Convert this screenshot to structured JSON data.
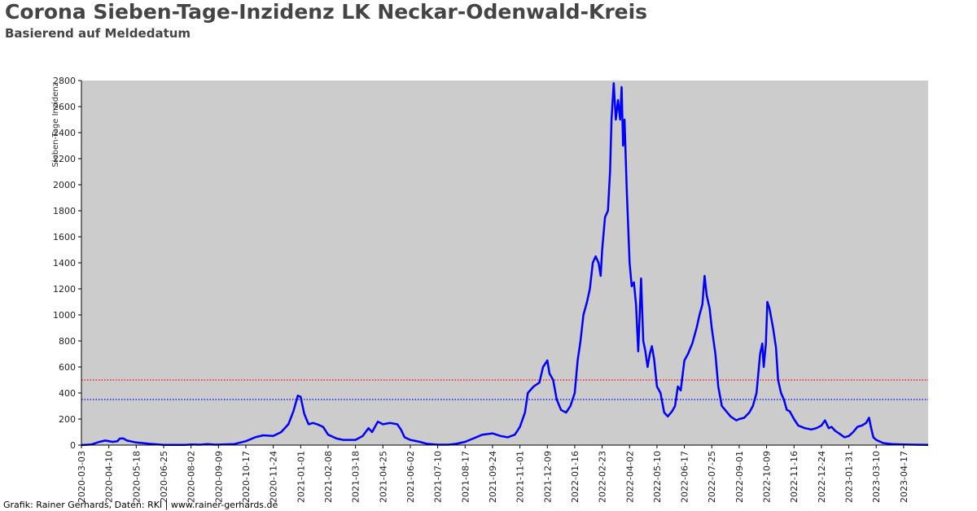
{
  "header": {
    "title": "Corona Sieben-Tage-Inzidenz LK Neckar-Odenwald-Kreis",
    "subtitle": "Basierend auf Meldedatum"
  },
  "footer": {
    "credit": "Grafik: Rainer Gerhards, Daten: RKI | www.rainer-gerhards.de"
  },
  "chart_data": {
    "type": "line",
    "title": "Corona Sieben-Tage-Inzidenz LK Neckar-Odenwald-Kreis",
    "subtitle": "Basierend auf Meldedatum",
    "xlabel": "",
    "ylabel": "Sieben-Tage Inzidenz",
    "ylim": [
      0,
      2800
    ],
    "xlim": [
      "2020-03-03",
      "2023-05-21"
    ],
    "yticks": [
      0,
      200,
      400,
      600,
      800,
      1000,
      1200,
      1400,
      1600,
      1800,
      2000,
      2200,
      2400,
      2600,
      2800
    ],
    "xticks": [
      "2020-03-03",
      "2020-04-10",
      "2020-05-18",
      "2020-06-25",
      "2020-08-02",
      "2020-09-09",
      "2020-10-17",
      "2020-11-24",
      "2021-01-01",
      "2021-02-08",
      "2021-03-18",
      "2021-04-25",
      "2021-06-02",
      "2021-07-10",
      "2021-08-17",
      "2021-09-24",
      "2021-11-01",
      "2021-12-09",
      "2022-01-16",
      "2022-02-23",
      "2022-04-02",
      "2022-05-10",
      "2022-06-17",
      "2022-07-25",
      "2022-09-01",
      "2022-10-09",
      "2022-11-16",
      "2022-12-24",
      "2023-01-31",
      "2023-03-10",
      "2023-04-17"
    ],
    "grid": false,
    "background": "#cccccc",
    "reference_lines": [
      {
        "y": 500,
        "color": "#ff0000",
        "style": "dotted"
      },
      {
        "y": 350,
        "color": "#0000ff",
        "style": "dotted"
      }
    ],
    "series": [
      {
        "color": "#0000ff",
        "points": [
          [
            "2020-03-03",
            0
          ],
          [
            "2020-03-17",
            5
          ],
          [
            "2020-03-28",
            25
          ],
          [
            "2020-04-05",
            35
          ],
          [
            "2020-04-15",
            25
          ],
          [
            "2020-04-22",
            30
          ],
          [
            "2020-04-25",
            50
          ],
          [
            "2020-04-30",
            52
          ],
          [
            "2020-05-05",
            35
          ],
          [
            "2020-05-18",
            20
          ],
          [
            "2020-06-05",
            10
          ],
          [
            "2020-06-25",
            2
          ],
          [
            "2020-07-25",
            2
          ],
          [
            "2020-08-02",
            5
          ],
          [
            "2020-08-15",
            3
          ],
          [
            "2020-08-25",
            8
          ],
          [
            "2020-09-05",
            3
          ],
          [
            "2020-10-01",
            8
          ],
          [
            "2020-10-17",
            30
          ],
          [
            "2020-10-30",
            60
          ],
          [
            "2020-11-10",
            75
          ],
          [
            "2020-11-24",
            70
          ],
          [
            "2020-12-05",
            100
          ],
          [
            "2020-12-15",
            160
          ],
          [
            "2020-12-22",
            260
          ],
          [
            "2020-12-28",
            380
          ],
          [
            "2021-01-01",
            370
          ],
          [
            "2021-01-06",
            240
          ],
          [
            "2021-01-12",
            160
          ],
          [
            "2021-01-18",
            170
          ],
          [
            "2021-01-24",
            160
          ],
          [
            "2021-02-01",
            140
          ],
          [
            "2021-02-08",
            80
          ],
          [
            "2021-02-20",
            50
          ],
          [
            "2021-03-01",
            40
          ],
          [
            "2021-03-18",
            40
          ],
          [
            "2021-03-28",
            70
          ],
          [
            "2021-04-05",
            130
          ],
          [
            "2021-04-10",
            100
          ],
          [
            "2021-04-18",
            180
          ],
          [
            "2021-04-25",
            160
          ],
          [
            "2021-05-05",
            170
          ],
          [
            "2021-05-15",
            160
          ],
          [
            "2021-05-20",
            120
          ],
          [
            "2021-05-25",
            60
          ],
          [
            "2021-06-02",
            40
          ],
          [
            "2021-06-15",
            25
          ],
          [
            "2021-06-25",
            10
          ],
          [
            "2021-07-10",
            3
          ],
          [
            "2021-07-25",
            3
          ],
          [
            "2021-08-05",
            10
          ],
          [
            "2021-08-17",
            25
          ],
          [
            "2021-08-28",
            50
          ],
          [
            "2021-09-10",
            80
          ],
          [
            "2021-09-24",
            90
          ],
          [
            "2021-10-05",
            70
          ],
          [
            "2021-10-15",
            60
          ],
          [
            "2021-10-25",
            80
          ],
          [
            "2021-11-01",
            140
          ],
          [
            "2021-11-08",
            250
          ],
          [
            "2021-11-12",
            400
          ],
          [
            "2021-11-20",
            450
          ],
          [
            "2021-11-28",
            480
          ],
          [
            "2021-12-03",
            600
          ],
          [
            "2021-12-09",
            650
          ],
          [
            "2021-12-12",
            550
          ],
          [
            "2021-12-17",
            500
          ],
          [
            "2021-12-22",
            350
          ],
          [
            "2021-12-28",
            270
          ],
          [
            "2022-01-04",
            250
          ],
          [
            "2022-01-10",
            300
          ],
          [
            "2022-01-16",
            400
          ],
          [
            "2022-01-20",
            650
          ],
          [
            "2022-01-24",
            800
          ],
          [
            "2022-01-28",
            1000
          ],
          [
            "2022-02-02",
            1100
          ],
          [
            "2022-02-06",
            1200
          ],
          [
            "2022-02-10",
            1400
          ],
          [
            "2022-02-14",
            1450
          ],
          [
            "2022-02-18",
            1400
          ],
          [
            "2022-02-21",
            1300
          ],
          [
            "2022-02-23",
            1500
          ],
          [
            "2022-02-27",
            1750
          ],
          [
            "2022-03-03",
            1800
          ],
          [
            "2022-03-06",
            2100
          ],
          [
            "2022-03-08",
            2500
          ],
          [
            "2022-03-11",
            2780
          ],
          [
            "2022-03-14",
            2500
          ],
          [
            "2022-03-17",
            2650
          ],
          [
            "2022-03-20",
            2500
          ],
          [
            "2022-03-22",
            2750
          ],
          [
            "2022-03-24",
            2300
          ],
          [
            "2022-03-26",
            2500
          ],
          [
            "2022-03-29",
            1980
          ],
          [
            "2022-04-02",
            1400
          ],
          [
            "2022-04-05",
            1220
          ],
          [
            "2022-04-08",
            1250
          ],
          [
            "2022-04-11",
            1080
          ],
          [
            "2022-04-14",
            720
          ],
          [
            "2022-04-16",
            1000
          ],
          [
            "2022-04-18",
            1280
          ],
          [
            "2022-04-21",
            800
          ],
          [
            "2022-04-24",
            720
          ],
          [
            "2022-04-27",
            600
          ],
          [
            "2022-04-30",
            700
          ],
          [
            "2022-05-03",
            760
          ],
          [
            "2022-05-06",
            660
          ],
          [
            "2022-05-10",
            450
          ],
          [
            "2022-05-15",
            400
          ],
          [
            "2022-05-20",
            250
          ],
          [
            "2022-05-25",
            220
          ],
          [
            "2022-05-31",
            260
          ],
          [
            "2022-06-04",
            300
          ],
          [
            "2022-06-08",
            450
          ],
          [
            "2022-06-12",
            420
          ],
          [
            "2022-06-17",
            650
          ],
          [
            "2022-06-22",
            700
          ],
          [
            "2022-06-28",
            780
          ],
          [
            "2022-07-04",
            900
          ],
          [
            "2022-07-08",
            1000
          ],
          [
            "2022-07-12",
            1080
          ],
          [
            "2022-07-15",
            1300
          ],
          [
            "2022-07-18",
            1150
          ],
          [
            "2022-07-22",
            1050
          ],
          [
            "2022-07-25",
            900
          ],
          [
            "2022-07-30",
            700
          ],
          [
            "2022-08-03",
            450
          ],
          [
            "2022-08-08",
            300
          ],
          [
            "2022-08-14",
            260
          ],
          [
            "2022-08-20",
            220
          ],
          [
            "2022-08-28",
            190
          ],
          [
            "2022-09-01",
            200
          ],
          [
            "2022-09-08",
            210
          ],
          [
            "2022-09-15",
            250
          ],
          [
            "2022-09-20",
            300
          ],
          [
            "2022-09-25",
            400
          ],
          [
            "2022-09-30",
            700
          ],
          [
            "2022-10-03",
            780
          ],
          [
            "2022-10-05",
            600
          ],
          [
            "2022-10-08",
            780
          ],
          [
            "2022-10-10",
            1100
          ],
          [
            "2022-10-13",
            1050
          ],
          [
            "2022-10-18",
            900
          ],
          [
            "2022-10-22",
            750
          ],
          [
            "2022-10-25",
            500
          ],
          [
            "2022-10-29",
            400
          ],
          [
            "2022-11-02",
            350
          ],
          [
            "2022-11-06",
            270
          ],
          [
            "2022-11-10",
            260
          ],
          [
            "2022-11-16",
            200
          ],
          [
            "2022-11-22",
            150
          ],
          [
            "2022-12-01",
            130
          ],
          [
            "2022-12-10",
            120
          ],
          [
            "2022-12-17",
            130
          ],
          [
            "2022-12-24",
            150
          ],
          [
            "2022-12-29",
            190
          ],
          [
            "2023-01-03",
            130
          ],
          [
            "2023-01-07",
            140
          ],
          [
            "2023-01-12",
            110
          ],
          [
            "2023-01-20",
            80
          ],
          [
            "2023-01-25",
            60
          ],
          [
            "2023-01-31",
            70
          ],
          [
            "2023-02-06",
            100
          ],
          [
            "2023-02-12",
            140
          ],
          [
            "2023-02-18",
            150
          ],
          [
            "2023-02-24",
            170
          ],
          [
            "2023-02-28",
            210
          ],
          [
            "2023-03-03",
            130
          ],
          [
            "2023-03-06",
            60
          ],
          [
            "2023-03-10",
            40
          ],
          [
            "2023-03-20",
            15
          ],
          [
            "2023-04-01",
            8
          ],
          [
            "2023-04-17",
            5
          ],
          [
            "2023-05-01",
            3
          ],
          [
            "2023-05-21",
            2
          ]
        ]
      }
    ]
  }
}
